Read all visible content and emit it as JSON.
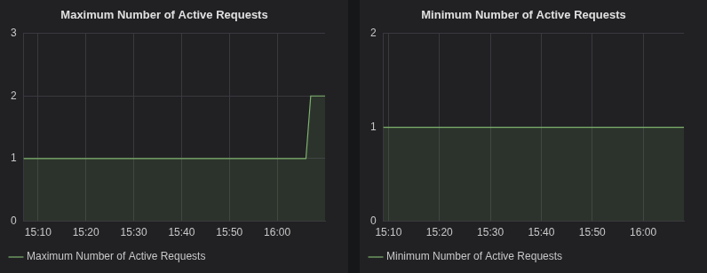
{
  "chart_data": [
    {
      "type": "area",
      "title": "Maximum Number of Active Requests",
      "categories": [
        null,
        null,
        null,
        "15:10",
        null,
        null,
        null,
        null,
        null,
        null,
        null,
        null,
        null,
        "15:20",
        null,
        null,
        null,
        null,
        null,
        null,
        null,
        null,
        null,
        "15:30",
        null,
        null,
        null,
        null,
        null,
        null,
        null,
        null,
        null,
        "15:40",
        null,
        null,
        null,
        null,
        null,
        null,
        null,
        null,
        null,
        "15:50",
        null,
        null,
        null,
        null,
        null,
        null,
        null,
        null,
        null,
        "16:00",
        null,
        null,
        null,
        null,
        null,
        null,
        null,
        null,
        null,
        null
      ],
      "series": [
        {
          "name": "Maximum Number of Active Requests",
          "color": "#7eb26d",
          "values": [
            1,
            1,
            1,
            1,
            1,
            1,
            1,
            1,
            1,
            1,
            1,
            1,
            1,
            1,
            1,
            1,
            1,
            1,
            1,
            1,
            1,
            1,
            1,
            1,
            1,
            1,
            1,
            1,
            1,
            1,
            1,
            1,
            1,
            1,
            1,
            1,
            1,
            1,
            1,
            1,
            1,
            1,
            1,
            1,
            1,
            1,
            1,
            1,
            1,
            1,
            1,
            1,
            1,
            1,
            1,
            1,
            1,
            1,
            1,
            1,
            2,
            2,
            2,
            2
          ]
        }
      ],
      "ylim": [
        0,
        3
      ],
      "yticks": [
        0,
        1,
        2,
        3
      ],
      "grid": true,
      "legend": "bottom-left"
    },
    {
      "type": "area",
      "title": "Minimum Number of Active Requests",
      "categories": [
        null,
        "15:10",
        null,
        null,
        null,
        null,
        null,
        null,
        null,
        null,
        null,
        "15:20",
        null,
        null,
        null,
        null,
        null,
        null,
        null,
        null,
        null,
        "15:30",
        null,
        null,
        null,
        null,
        null,
        null,
        null,
        null,
        null,
        "15:40",
        null,
        null,
        null,
        null,
        null,
        null,
        null,
        null,
        null,
        "15:50",
        null,
        null,
        null,
        null,
        null,
        null,
        null,
        null,
        null,
        "16:00",
        null,
        null,
        null,
        null,
        null,
        null,
        null,
        null
      ],
      "series": [
        {
          "name": "Minimum Number of Active Requests",
          "color": "#7eb26d",
          "values": [
            1,
            1,
            1,
            1,
            1,
            1,
            1,
            1,
            1,
            1,
            1,
            1,
            1,
            1,
            1,
            1,
            1,
            1,
            1,
            1,
            1,
            1,
            1,
            1,
            1,
            1,
            1,
            1,
            1,
            1,
            1,
            1,
            1,
            1,
            1,
            1,
            1,
            1,
            1,
            1,
            1,
            1,
            1,
            1,
            1,
            1,
            1,
            1,
            1,
            1,
            1,
            1,
            1,
            1,
            1,
            1,
            1,
            1,
            1,
            1
          ]
        }
      ],
      "ylim": [
        0,
        2
      ],
      "yticks": [
        0,
        1,
        2
      ],
      "grid": true,
      "legend": "bottom-left"
    }
  ]
}
